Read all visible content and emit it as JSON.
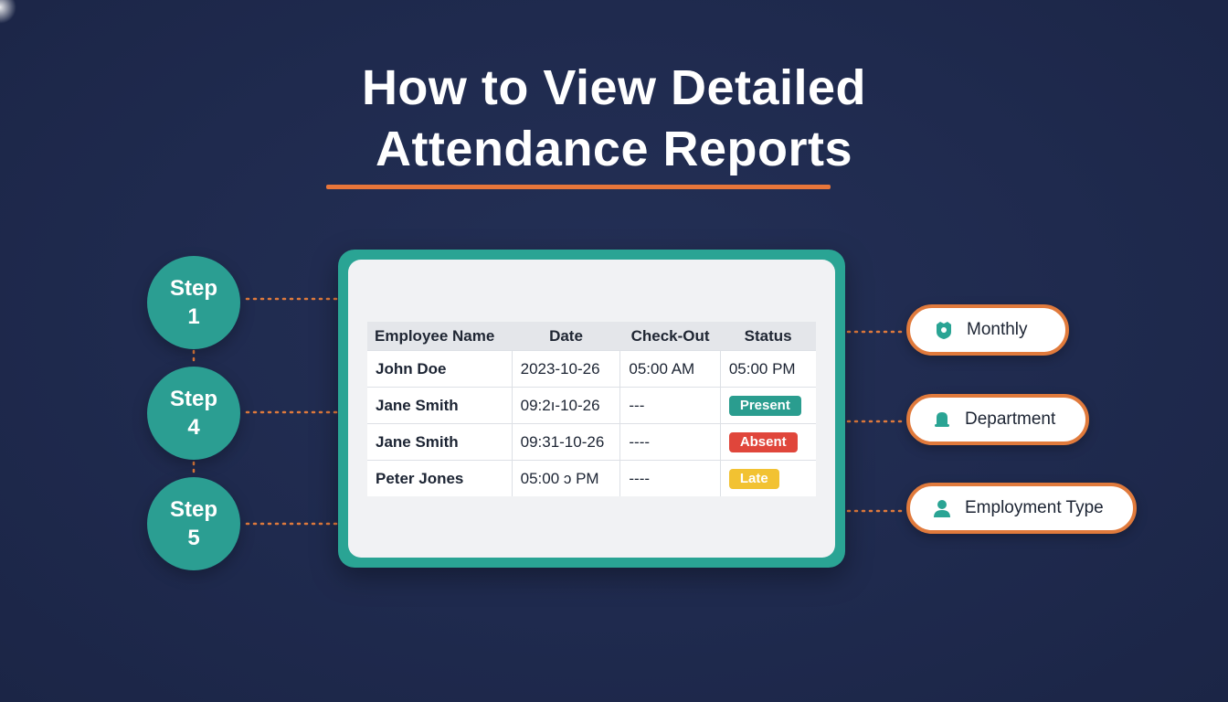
{
  "title": {
    "line1": "How to View Detailed",
    "line2": "Attendance Reports"
  },
  "steps": [
    {
      "label": "Step",
      "number": "1"
    },
    {
      "label": "Step",
      "number": "4"
    },
    {
      "label": "Step",
      "number": "5"
    }
  ],
  "table": {
    "headers": [
      "Employee Name",
      "Date",
      "Check-Out",
      "Status"
    ],
    "rows": [
      {
        "name": "John Doe",
        "date": "2023-10-26",
        "checkout": "05:00 AM",
        "status": "05:00 PM"
      },
      {
        "name": "Jane Smith",
        "date": "09:2ı-10-26",
        "checkout": "---",
        "status": "Present"
      },
      {
        "name": "Jane Smith",
        "date": "09:31-10-26",
        "checkout": "----",
        "status": "Absent"
      },
      {
        "name": "Peter Jones",
        "date": "05:00 ɔ PM",
        "checkout": "----",
        "status": "Late"
      }
    ]
  },
  "filters": [
    {
      "label": "Monthly",
      "icon": "shield-icon"
    },
    {
      "label": "Department",
      "icon": "bell-icon"
    },
    {
      "label": "Employment Type",
      "icon": "person-icon"
    }
  ],
  "colors": {
    "background": "#1f2a4e",
    "teal": "#2aa494",
    "orange": "#e07a3c",
    "present": "#2a9d8f",
    "absent": "#e0463b",
    "late": "#f2c232"
  }
}
